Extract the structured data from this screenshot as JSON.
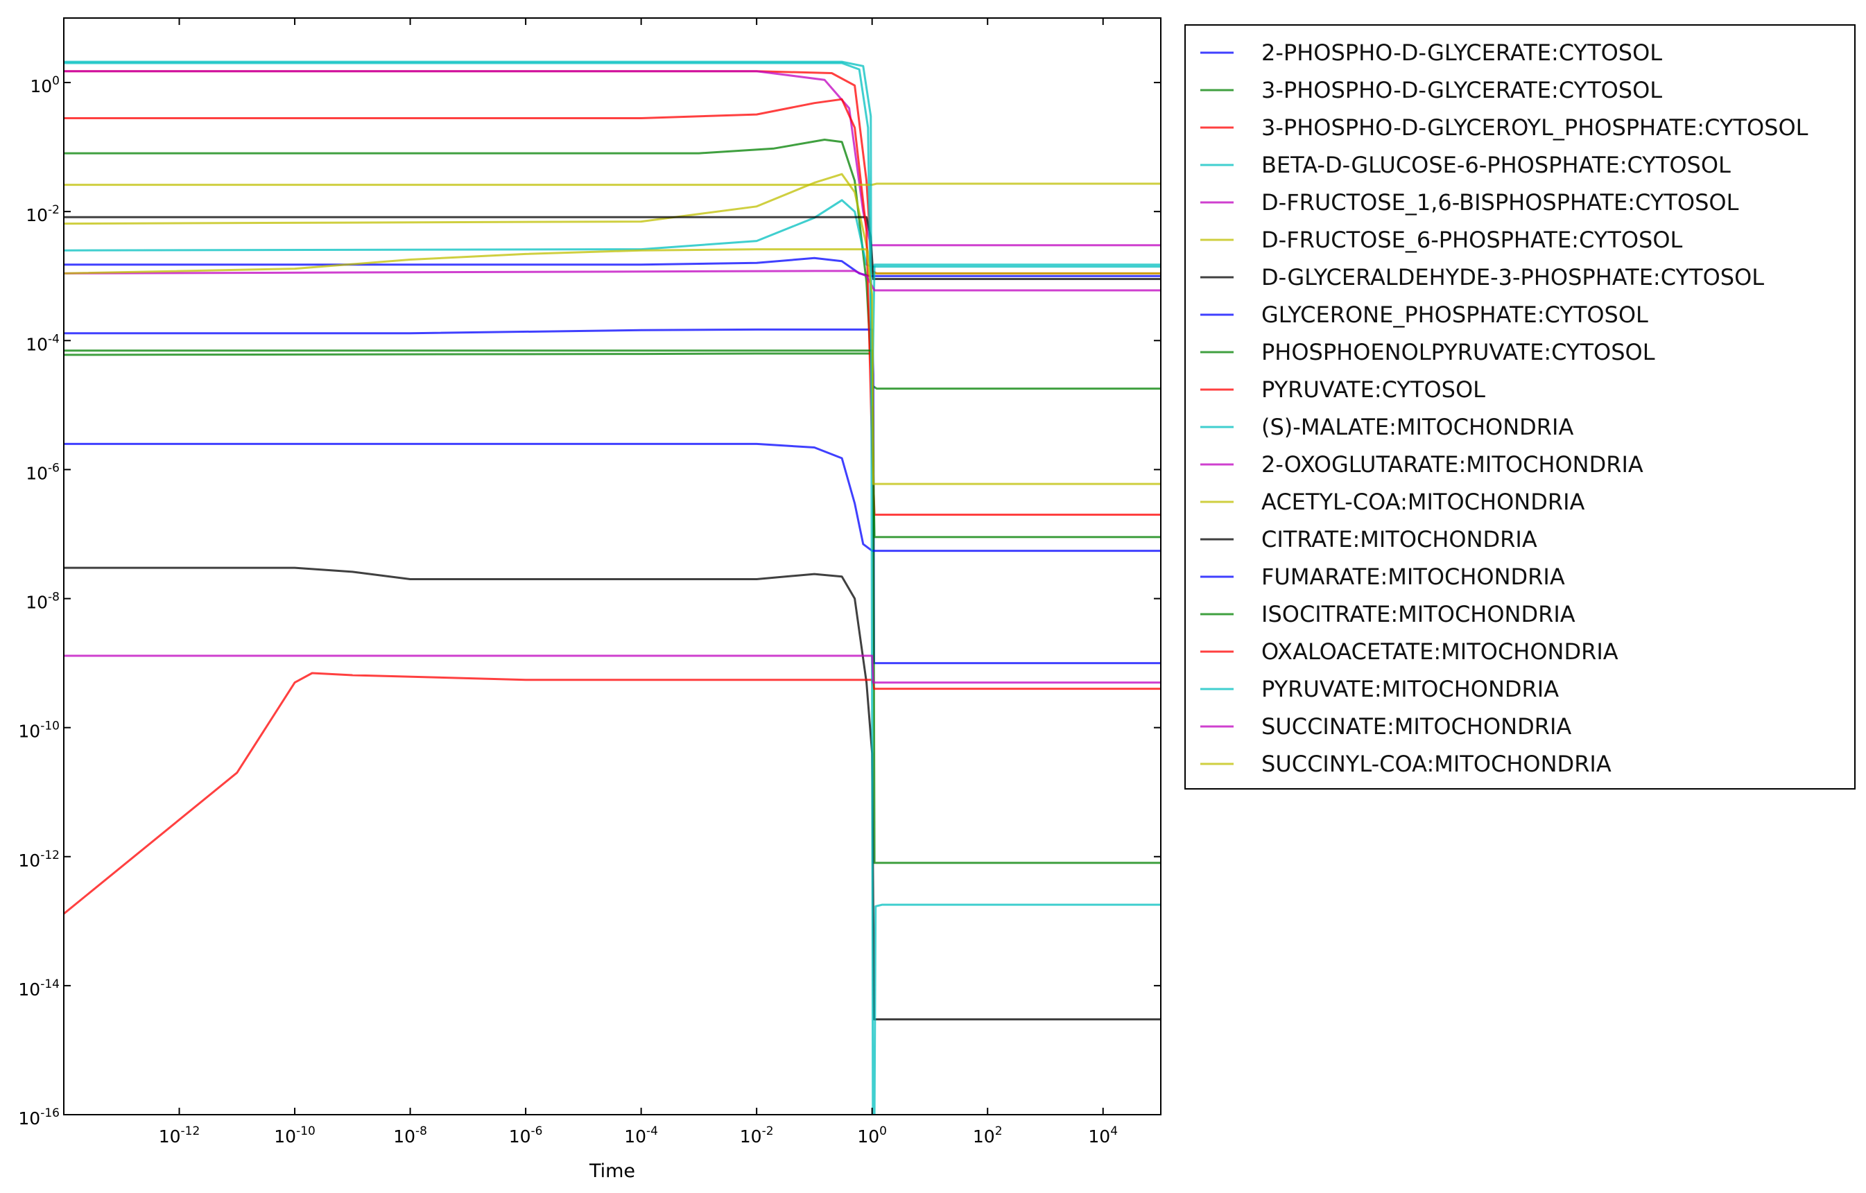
{
  "chart_data": {
    "type": "line",
    "title": "",
    "xlabel": "Time",
    "ylabel": "",
    "xscale": "log",
    "yscale": "log",
    "xlim": [
      1e-14,
      100000.0
    ],
    "ylim": [
      1e-16,
      10
    ],
    "grid": false,
    "legend_position": "outside-right",
    "x_tick_labels": [
      "10^-12",
      "10^-10",
      "10^-8",
      "10^-6",
      "10^-4",
      "10^-2",
      "10^0",
      "10^2",
      "10^4"
    ],
    "y_tick_labels": [
      "10^-16",
      "10^-14",
      "10^-12",
      "10^-10",
      "10^-8",
      "10^-6",
      "10^-4",
      "10^-2",
      "10^0"
    ],
    "series": [
      {
        "name": "2-PHOSPHO-D-GLYCERATE:CYTOSOL",
        "color": "#0000ff",
        "points": [
          [
            1e-14,
            0.0015
          ],
          [
            0.0001,
            0.0015
          ],
          [
            0.01,
            0.0016
          ],
          [
            0.1,
            0.0019
          ],
          [
            0.3,
            0.0017
          ],
          [
            0.6,
            0.0011
          ],
          [
            0.9,
            0.001
          ],
          [
            1.2,
            0.001
          ],
          [
            100000.0,
            0.001
          ]
        ]
      },
      {
        "name": "3-PHOSPHO-D-GLYCERATE:CYTOSOL",
        "color": "#008000",
        "points": [
          [
            1e-14,
            0.08
          ],
          [
            0.001,
            0.08
          ],
          [
            0.02,
            0.095
          ],
          [
            0.15,
            0.13
          ],
          [
            0.3,
            0.12
          ],
          [
            0.5,
            0.03
          ],
          [
            0.8,
            0.0008
          ],
          [
            1.0,
            2e-05
          ],
          [
            1.2,
            1.8e-05
          ],
          [
            100000.0,
            1.8e-05
          ]
        ]
      },
      {
        "name": "3-PHOSPHO-D-GLYCEROYL_PHOSPHATE:CYTOSOL",
        "color": "#ff0000",
        "points": [
          [
            1e-14,
            1.5
          ],
          [
            0.01,
            1.5
          ],
          [
            0.2,
            1.4
          ],
          [
            0.5,
            0.9
          ],
          [
            0.8,
            0.03
          ],
          [
            1.0,
            0.0012
          ],
          [
            1.2,
            0.0011
          ],
          [
            100000.0,
            0.0011
          ]
        ]
      },
      {
        "name": "BETA-D-GLUCOSE-6-PHOSPHATE:CYTOSOL",
        "color": "#00bfbf",
        "points": [
          [
            1e-14,
            0.0025
          ],
          [
            0.0001,
            0.0026
          ],
          [
            0.01,
            0.0035
          ],
          [
            0.1,
            0.008
          ],
          [
            0.3,
            0.015
          ],
          [
            0.5,
            0.01
          ],
          [
            0.8,
            0.0015
          ],
          [
            1.0,
            0.0014
          ],
          [
            100000.0,
            0.0014
          ]
        ]
      },
      {
        "name": "D-FRUCTOSE_1,6-BISPHOSPHATE:CYTOSOL",
        "color": "#bf00bf",
        "points": [
          [
            1e-14,
            1.5
          ],
          [
            0.01,
            1.5
          ],
          [
            0.15,
            1.1
          ],
          [
            0.4,
            0.4
          ],
          [
            0.7,
            0.01
          ],
          [
            0.95,
            0.003
          ],
          [
            1.2,
            0.003
          ],
          [
            100000.0,
            0.003
          ]
        ]
      },
      {
        "name": "D-FRUCTOSE_6-PHOSPHATE:CYTOSOL",
        "color": "#bfbf00",
        "points": [
          [
            1e-14,
            0.0065
          ],
          [
            0.0001,
            0.007
          ],
          [
            0.01,
            0.012
          ],
          [
            0.1,
            0.028
          ],
          [
            0.3,
            0.038
          ],
          [
            0.5,
            0.02
          ],
          [
            0.8,
            0.003
          ],
          [
            1.0,
            0.0011
          ],
          [
            100000.0,
            0.0011
          ]
        ]
      },
      {
        "name": "D-GLYCERALDEHYDE-3-PHOSPHATE:CYTOSOL",
        "color": "#000000",
        "points": [
          [
            1e-14,
            0.0082
          ],
          [
            0.8,
            0.0082
          ],
          [
            0.95,
            0.004
          ],
          [
            1.05,
            0.0009
          ],
          [
            1.2,
            0.0009
          ],
          [
            100000.0,
            0.0009
          ]
        ]
      },
      {
        "name": "GLYCERONE_PHOSPHATE:CYTOSOL",
        "color": "#0000ff",
        "points": [
          [
            1e-14,
            0.00013
          ],
          [
            1e-08,
            0.00013
          ],
          [
            0.0001,
            0.000145
          ],
          [
            0.01,
            0.000148
          ],
          [
            1.0,
            0.000148
          ],
          [
            1.05,
            3e-05
          ],
          [
            1.08,
            1e-09
          ],
          [
            1.2,
            1e-09
          ],
          [
            100000.0,
            1e-09
          ]
        ]
      },
      {
        "name": "PHOSPHOENOLPYRUVATE:CYTOSOL",
        "color": "#008000",
        "points": [
          [
            1e-14,
            6e-05
          ],
          [
            0.0001,
            6.2e-05
          ],
          [
            0.01,
            6.3e-05
          ],
          [
            1.0,
            6.3e-05
          ],
          [
            1.05,
            1e-06
          ],
          [
            1.1,
            8e-13
          ],
          [
            1.2,
            8e-13
          ],
          [
            100000.0,
            8e-13
          ]
        ]
      },
      {
        "name": "PYRUVATE:CYTOSOL",
        "color": "#ff0000",
        "points": [
          [
            1e-14,
            0.28
          ],
          [
            0.0001,
            0.28
          ],
          [
            0.01,
            0.32
          ],
          [
            0.1,
            0.48
          ],
          [
            0.3,
            0.55
          ],
          [
            0.5,
            0.2
          ],
          [
            0.8,
            0.005
          ],
          [
            1.0,
            2e-06
          ],
          [
            1.1,
            2e-07
          ],
          [
            100000.0,
            2e-07
          ]
        ]
      },
      {
        "name": "(S)-MALATE:MITOCHONDRIA",
        "color": "#00bfbf",
        "points": [
          [
            1e-14,
            2.0
          ],
          [
            0.3,
            2.0
          ],
          [
            0.6,
            1.6
          ],
          [
            0.85,
            0.2
          ],
          [
            1.0,
            1e-05
          ],
          [
            1.1,
            0.0015
          ],
          [
            100000.0,
            0.0015
          ]
        ]
      },
      {
        "name": "2-OXOGLUTARATE:MITOCHONDRIA",
        "color": "#bf00bf",
        "points": [
          [
            1e-14,
            0.0011
          ],
          [
            0.1,
            0.0012
          ],
          [
            0.5,
            0.0012
          ],
          [
            0.8,
            0.001
          ],
          [
            1.0,
            0.0007
          ],
          [
            1.1,
            0.0006
          ],
          [
            100000.0,
            0.0006
          ]
        ]
      },
      {
        "name": "ACETYL-COA:MITOCHONDRIA",
        "color": "#bfbf00",
        "points": [
          [
            1e-14,
            0.026
          ],
          [
            1.0,
            0.026
          ],
          [
            1.2,
            0.027
          ],
          [
            100000.0,
            0.027
          ]
        ]
      },
      {
        "name": "CITRATE:MITOCHONDRIA",
        "color": "#000000",
        "points": [
          [
            1e-14,
            3e-08
          ],
          [
            1e-10,
            3e-08
          ],
          [
            1e-09,
            2.6e-08
          ],
          [
            1e-08,
            2e-08
          ],
          [
            0.0001,
            2e-08
          ],
          [
            0.01,
            2e-08
          ],
          [
            0.1,
            2.4e-08
          ],
          [
            0.3,
            2.2e-08
          ],
          [
            0.5,
            1e-08
          ],
          [
            0.8,
            5e-10
          ],
          [
            1.0,
            4e-11
          ],
          [
            1.08,
            3e-15
          ],
          [
            1.2,
            3e-15
          ],
          [
            100000.0,
            3e-15
          ]
        ]
      },
      {
        "name": "FUMARATE:MITOCHONDRIA",
        "color": "#0000ff",
        "points": [
          [
            1e-14,
            2.5e-06
          ],
          [
            0.01,
            2.5e-06
          ],
          [
            0.1,
            2.2e-06
          ],
          [
            0.3,
            1.5e-06
          ],
          [
            0.5,
            3e-07
          ],
          [
            0.7,
            7e-08
          ],
          [
            1.0,
            5.5e-08
          ],
          [
            100000.0,
            5.5e-08
          ]
        ]
      },
      {
        "name": "ISOCITRATE:MITOCHONDRIA",
        "color": "#008000",
        "points": [
          [
            1e-14,
            7e-05
          ],
          [
            1.0,
            7e-05
          ],
          [
            1.05,
            1e-06
          ],
          [
            1.1,
            9e-08
          ],
          [
            100000.0,
            9e-08
          ]
        ]
      },
      {
        "name": "OXALOACETATE:MITOCHONDRIA",
        "color": "#ff0000",
        "points": [
          [
            1e-14,
            1.3e-13
          ],
          [
            1e-11,
            2e-11
          ],
          [
            1e-10,
            5e-10
          ],
          [
            2e-10,
            7e-10
          ],
          [
            1e-09,
            6.5e-10
          ],
          [
            1e-06,
            5.5e-10
          ],
          [
            0.001,
            5.5e-10
          ],
          [
            1.0,
            5.5e-10
          ],
          [
            1.08,
            4e-10
          ],
          [
            100000.0,
            4e-10
          ]
        ]
      },
      {
        "name": "PYRUVATE:MITOCHONDRIA",
        "color": "#00bfbf",
        "points": [
          [
            1e-14,
            2.1
          ],
          [
            0.3,
            2.1
          ],
          [
            0.7,
            1.8
          ],
          [
            0.95,
            0.3
          ],
          [
            1.0,
            1e-10
          ],
          [
            1.03,
            1e-16
          ],
          [
            1.1,
            1e-16
          ],
          [
            1.15,
            1.7e-13
          ],
          [
            1.5,
            1.8e-13
          ],
          [
            100000.0,
            1.8e-13
          ]
        ]
      },
      {
        "name": "SUCCINATE:MITOCHONDRIA",
        "color": "#bf00bf",
        "points": [
          [
            1e-14,
            1.3e-09
          ],
          [
            1.0,
            1.3e-09
          ],
          [
            1.05,
            5e-10
          ],
          [
            100000.0,
            5e-10
          ]
        ]
      },
      {
        "name": "SUCCINYL-COA:MITOCHONDRIA",
        "color": "#bfbf00",
        "points": [
          [
            1e-14,
            0.0011
          ],
          [
            1e-10,
            0.0013
          ],
          [
            1e-08,
            0.0018
          ],
          [
            1e-06,
            0.0022
          ],
          [
            0.0001,
            0.0025
          ],
          [
            0.01,
            0.0026
          ],
          [
            0.8,
            0.0026
          ],
          [
            1.0,
            0.0005
          ],
          [
            1.05,
            6e-07
          ],
          [
            100000.0,
            6e-07
          ]
        ]
      }
    ]
  }
}
